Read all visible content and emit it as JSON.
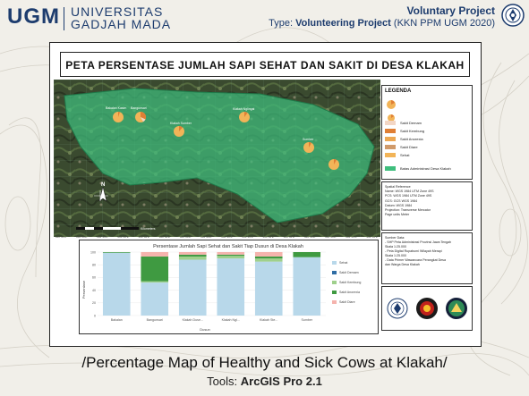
{
  "header": {
    "logo_text": "UGM",
    "university_line1": "UNIVERSITAS",
    "university_line2": "GADJAH MADA",
    "project_title": "Voluntary Project",
    "type_prefix": "Type:",
    "type_value": "Volunteering Project",
    "type_detail": "(KKN PPM UGM 2020)"
  },
  "map": {
    "title": "PETA PERSENTASE JUMLAH SAPI SEHAT DAN SAKIT DI DESA KLAKAH",
    "place_labels": [
      "Bakalan Kasim",
      "Bangunsari",
      "Klakah Sumber",
      "Klakah Nglingai",
      "Sumber"
    ],
    "north_label": "N",
    "scale_label": "Kilometers",
    "coord_label": "xxx°xx'E"
  },
  "legend": {
    "title": "LEGENDA",
    "items": [
      {
        "label": "Sakit Demam",
        "color": "#f3d6c5"
      },
      {
        "label": "Sakit Kembung",
        "color": "#e07f35"
      },
      {
        "label": "Sakit Anorexia",
        "color": "#eda853"
      },
      {
        "label": "Sakit Diare",
        "color": "#d09a6a"
      },
      {
        "label": "Sehat",
        "color": "#f2b458"
      },
      {
        "label": "Batas Administrasi Desa Klakah",
        "color": "#3fbe7d"
      }
    ]
  },
  "spatial_reference": {
    "lines": [
      "Spatial Reference",
      "Name: WGS 1984 UTM Zone 49S",
      "PCS: WGS 1984 UTM Zone 49S",
      "GCS: GCS WGS 1984",
      "Datum: WGS 1984",
      "Projection: Transverse Mercator",
      "Page units Meter"
    ]
  },
  "sources": {
    "lines": [
      "Sumber Data:",
      "- SHP Peta Administrasi Provinsi Jawa Tengah",
      "  Skala 1:25.000",
      "- Peta Digital Rupabumi Wilayah Merapi",
      "  Skala 1:25.000",
      "- Data Primer Wawancara Perangkat Desa",
      "  dan Warga Desa Klakah"
    ]
  },
  "chart_data": {
    "type": "bar",
    "stacked": true,
    "title": "Persentase Jumlah Sapi Sehat dan Sakit Tiap Dusun di Desa Klakah",
    "xlabel": "Dusun",
    "ylabel": "Persentase",
    "ylim": [
      0,
      100
    ],
    "yticks": [
      0,
      20,
      40,
      60,
      80,
      100
    ],
    "categories": [
      "Bakalan",
      "Bangunsari",
      "Klakah Duse...",
      "Klakah Ngl...",
      "Klakah Ste...",
      "Sumber"
    ],
    "series": [
      {
        "name": "Sehat",
        "color": "#b8d8ea",
        "values": [
          99,
          52,
          88,
          90,
          85,
          92
        ]
      },
      {
        "name": "Sakit Demam",
        "color": "#2f6da4",
        "values": [
          0,
          0,
          0,
          0,
          0,
          0
        ]
      },
      {
        "name": "Sakit Kembung",
        "color": "#9fd08c",
        "values": [
          0,
          2,
          5,
          4,
          5,
          0
        ]
      },
      {
        "name": "Sakit Anorexia",
        "color": "#3f9a41",
        "values": [
          1,
          39,
          3,
          2,
          3,
          8
        ]
      },
      {
        "name": "Sakit Diare",
        "color": "#f5b3ad",
        "values": [
          0,
          7,
          4,
          4,
          7,
          0
        ]
      }
    ]
  },
  "footer": {
    "caption": "/Percentage Map of Healthy and Sick Cows at Klakah/",
    "tools_prefix": "Tools:",
    "tools_value": "ArcGIS Pro 2.1"
  },
  "colors": {
    "brand": "#1d3c6e",
    "region_fill": "#3fbe7d",
    "pie_healthy": "#f2b458",
    "pie_sick": "#e07f35"
  }
}
